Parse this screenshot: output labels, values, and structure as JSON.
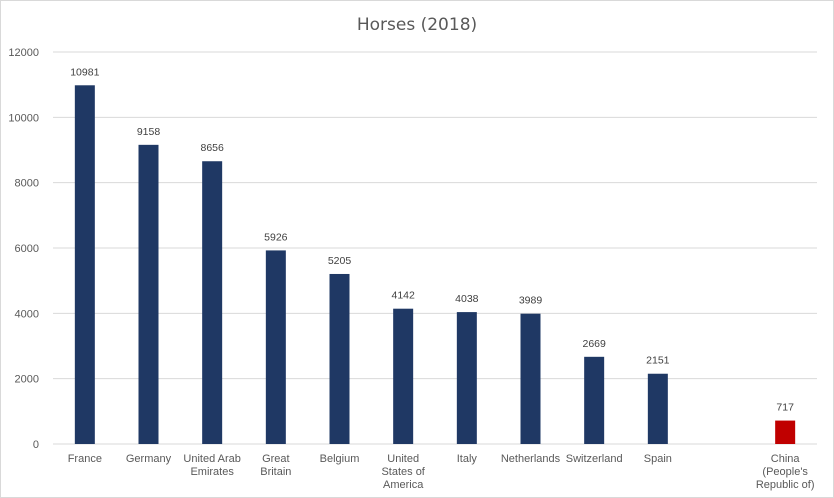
{
  "chart_data": {
    "type": "bar",
    "title": "Horses (2018)",
    "xlabel": "",
    "ylabel": "",
    "ylim": [
      0,
      12000
    ],
    "yticks": [
      0,
      2000,
      4000,
      6000,
      8000,
      10000,
      12000
    ],
    "grid": true,
    "categories": [
      [
        "France"
      ],
      [
        "Germany"
      ],
      [
        "United Arab",
        "Emirates"
      ],
      [
        "Great",
        "Britain"
      ],
      [
        "Belgium"
      ],
      [
        "United",
        "States of",
        "America"
      ],
      [
        "Italy"
      ],
      [
        "Netherlands"
      ],
      [
        "Switzerland"
      ],
      [
        "Spain"
      ],
      [
        ""
      ],
      [
        "China",
        "(People's",
        "Republic of)"
      ]
    ],
    "values": [
      10981,
      9158,
      8656,
      5926,
      5205,
      4142,
      4038,
      3989,
      2669,
      2151,
      null,
      717
    ],
    "data_labels": [
      "10981",
      "9158",
      "8656",
      "5926",
      "5205",
      "4142",
      "4038",
      "3989",
      "2669",
      "2151",
      "",
      "717"
    ],
    "colors": {
      "default": "#1f3864",
      "highlight": "#c00000"
    },
    "highlight_index": 11
  }
}
